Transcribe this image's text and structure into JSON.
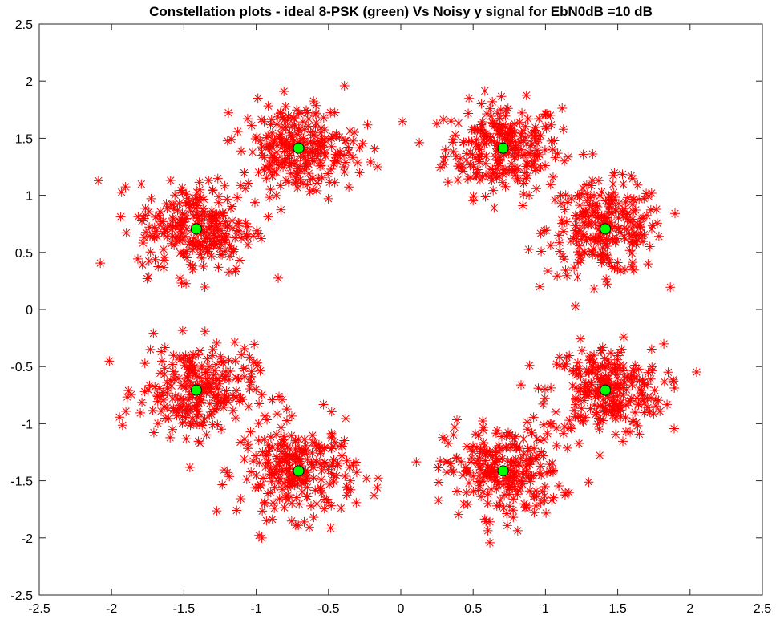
{
  "chart_data": {
    "type": "scatter",
    "title": "Constellation plots - ideal 8-PSK (green) Vs Noisy y signal for EbN0dB =10 dB",
    "xlabel": "",
    "ylabel": "",
    "xlim": [
      -2.5,
      2.5
    ],
    "ylim": [
      -2.5,
      2.5
    ],
    "xticks": [
      -2.5,
      -2,
      -1.5,
      -1,
      -0.5,
      0,
      0.5,
      1,
      1.5,
      2,
      2.5
    ],
    "yticks": [
      2.5,
      2,
      1.5,
      1,
      0.5,
      0,
      -0.5,
      -1,
      -1.5,
      -2,
      -2.5
    ],
    "xtick_labels": [
      "-2.5",
      "-2",
      "-1.5",
      "-1",
      "-0.5",
      "0",
      "0.5",
      "1",
      "1.5",
      "2",
      "2.5"
    ],
    "ytick_labels": [
      "2.5",
      "2",
      "1.5",
      "1",
      "0.5",
      "0",
      "-0.5",
      "-1",
      "-1.5",
      "-2",
      "-2.5"
    ],
    "grid": false,
    "series": [
      {
        "marker": "asterisk",
        "color": "#ff0000",
        "cluster_centers": [
          [
            0.707,
            1.414
          ],
          [
            1.414,
            0.707
          ],
          [
            1.414,
            -0.707
          ],
          [
            0.707,
            -1.414
          ],
          [
            -0.707,
            -1.414
          ],
          [
            -1.414,
            -0.707
          ],
          [
            -1.414,
            0.707
          ],
          [
            -0.707,
            1.414
          ]
        ],
        "cluster_spread": 0.2,
        "points_per_cluster": 260
      },
      {
        "marker": "circle",
        "color": "#00ff00",
        "edge_color": "#000000",
        "x": [
          0.707,
          1.414,
          1.414,
          0.707,
          -0.707,
          -1.414,
          -1.414,
          -0.707
        ],
        "y": [
          1.414,
          0.707,
          -0.707,
          -1.414,
          -1.414,
          -0.707,
          0.707,
          1.414
        ]
      }
    ]
  }
}
